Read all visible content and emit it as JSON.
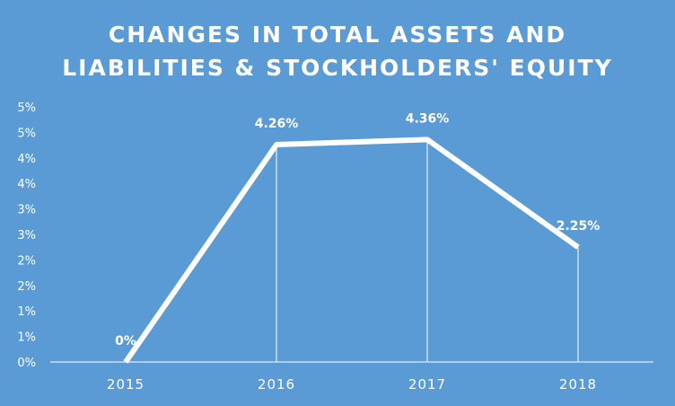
{
  "chart_data": {
    "type": "line",
    "title_lines": [
      "CHANGES IN TOTAL ASSETS AND",
      "LIABILITIES & STOCKHOLDERS' EQUITY"
    ],
    "categories": [
      "2015",
      "2016",
      "2017",
      "2018"
    ],
    "series": [
      {
        "values": [
          0,
          4.26,
          4.36,
          2.25
        ],
        "data_labels": [
          "0%",
          "4.26%",
          "4.36%",
          "2.25%"
        ]
      }
    ],
    "ylim": [
      0,
      5
    ],
    "y_tick_labels": [
      "0%",
      "1%",
      "1%",
      "2%",
      "2%",
      "3%",
      "3%",
      "4%",
      "4%",
      "5%",
      "5%"
    ],
    "grid": false,
    "drop_lines": true,
    "legend": "none",
    "colors": {
      "background": "#5b9bd5",
      "line": "#ffffff",
      "text": "#ffffff"
    }
  }
}
